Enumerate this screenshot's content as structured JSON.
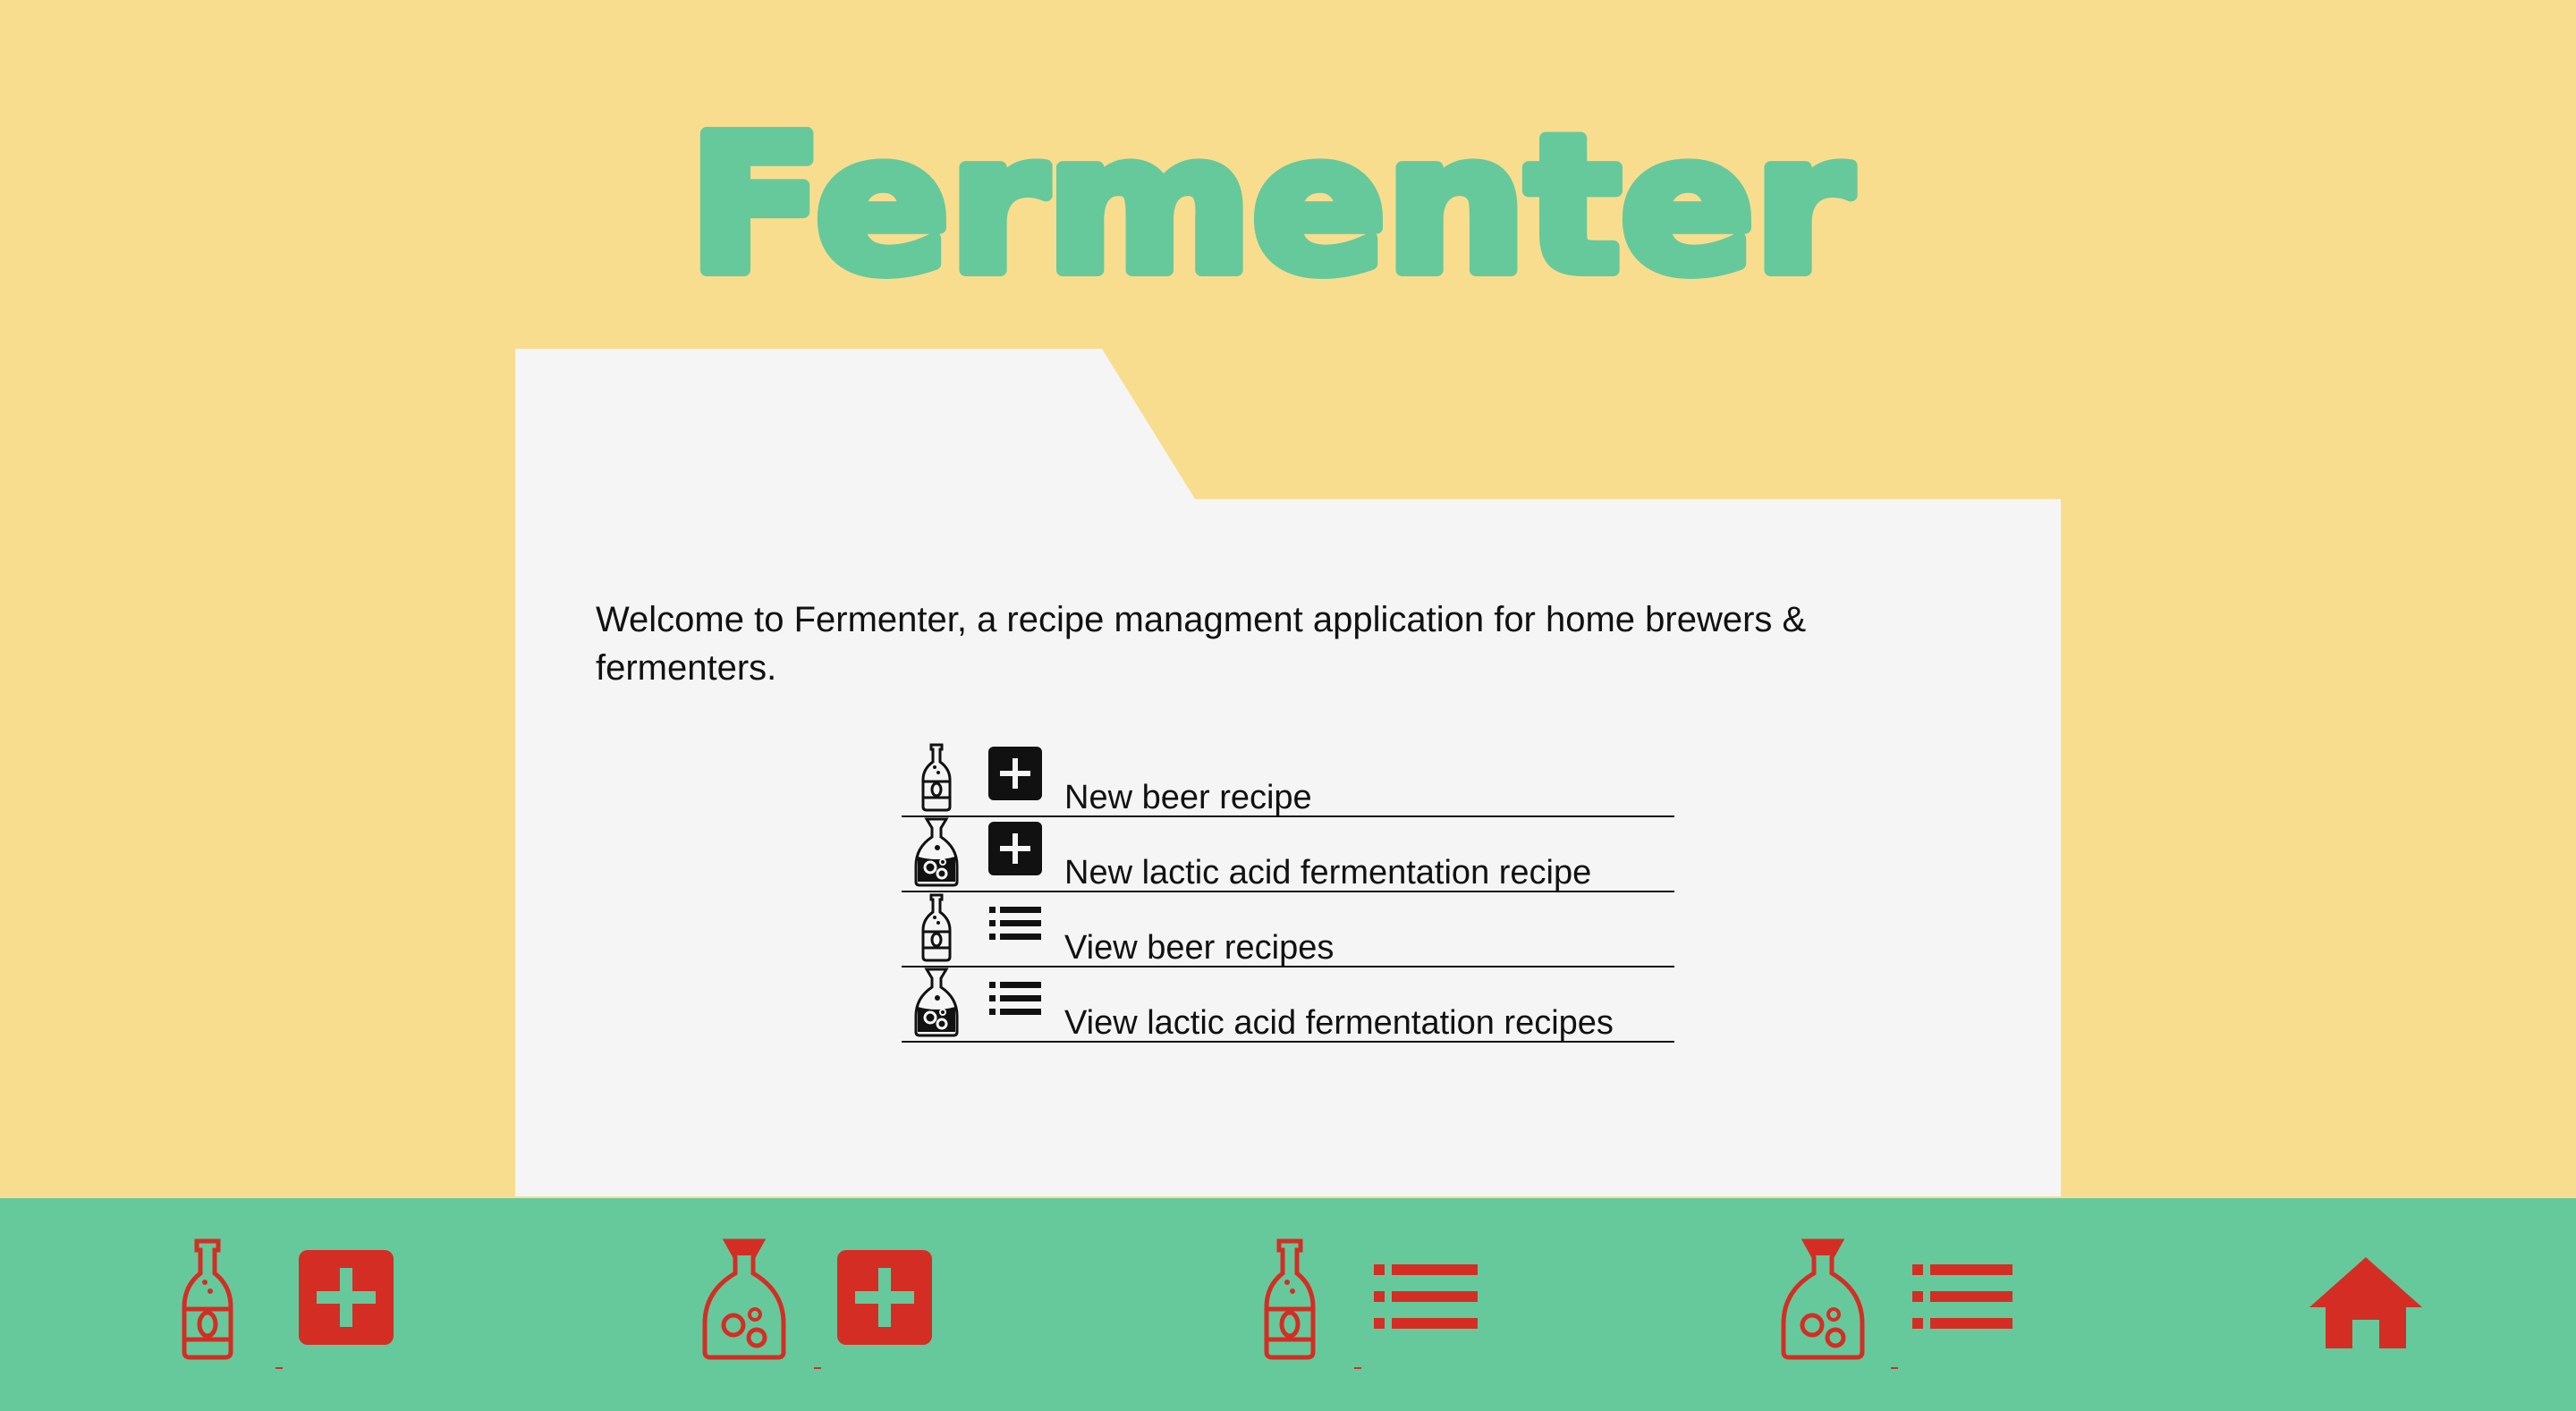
{
  "app": {
    "title": "Fermenter"
  },
  "colors": {
    "background": "#f9dd8e",
    "logo": "#66c99c",
    "panel": "#f5f5f5",
    "bottom_bar": "#66c99c",
    "nav_icon": "#d42e24",
    "text": "#111111"
  },
  "main": {
    "welcome_text": "Welcome to Fermenter, a recipe managment application for home brewers & fermenters.",
    "actions": [
      {
        "label": "New beer recipe",
        "vessel_icon": "beer-bottle-icon",
        "op_icon": "plus-square-icon"
      },
      {
        "label": "New lactic acid fermentation recipe",
        "vessel_icon": "fermentation-jar-icon",
        "op_icon": "plus-square-icon"
      },
      {
        "label": "View beer recipes",
        "vessel_icon": "beer-bottle-icon",
        "op_icon": "list-icon"
      },
      {
        "label": "View lactic acid fermentation recipes",
        "vessel_icon": "fermentation-jar-icon",
        "op_icon": "list-icon"
      }
    ]
  },
  "bottom_nav": {
    "items": [
      {
        "vessel_icon": "beer-bottle-icon",
        "op_icon": "plus-square-icon"
      },
      {
        "vessel_icon": "fermentation-jar-icon",
        "op_icon": "plus-square-icon"
      },
      {
        "vessel_icon": "beer-bottle-icon",
        "op_icon": "list-icon"
      },
      {
        "vessel_icon": "fermentation-jar-icon",
        "op_icon": "list-icon"
      },
      {
        "icon": "home-icon"
      }
    ]
  }
}
